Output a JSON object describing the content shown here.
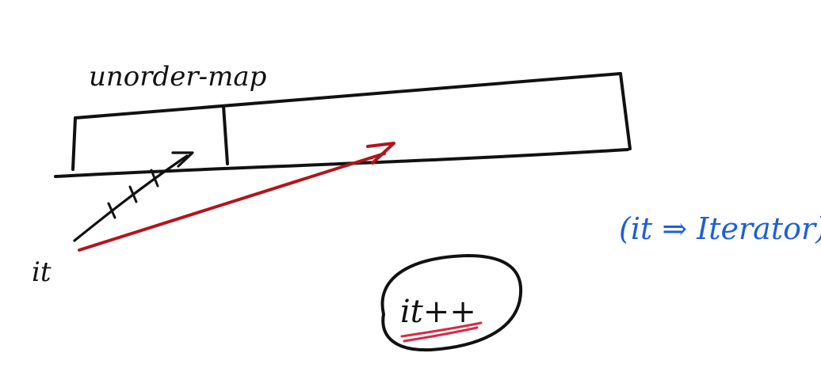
{
  "diagram": {
    "title_label": "unorder-map",
    "iterator_label": "it",
    "increment_label": "it++",
    "note_label": "(it ⇒ Iterator)",
    "colors": {
      "black_ink": "#111111",
      "red_ink": "#b3141b",
      "blue_ink": "#1f5fd6",
      "background": "#ffffff"
    }
  }
}
